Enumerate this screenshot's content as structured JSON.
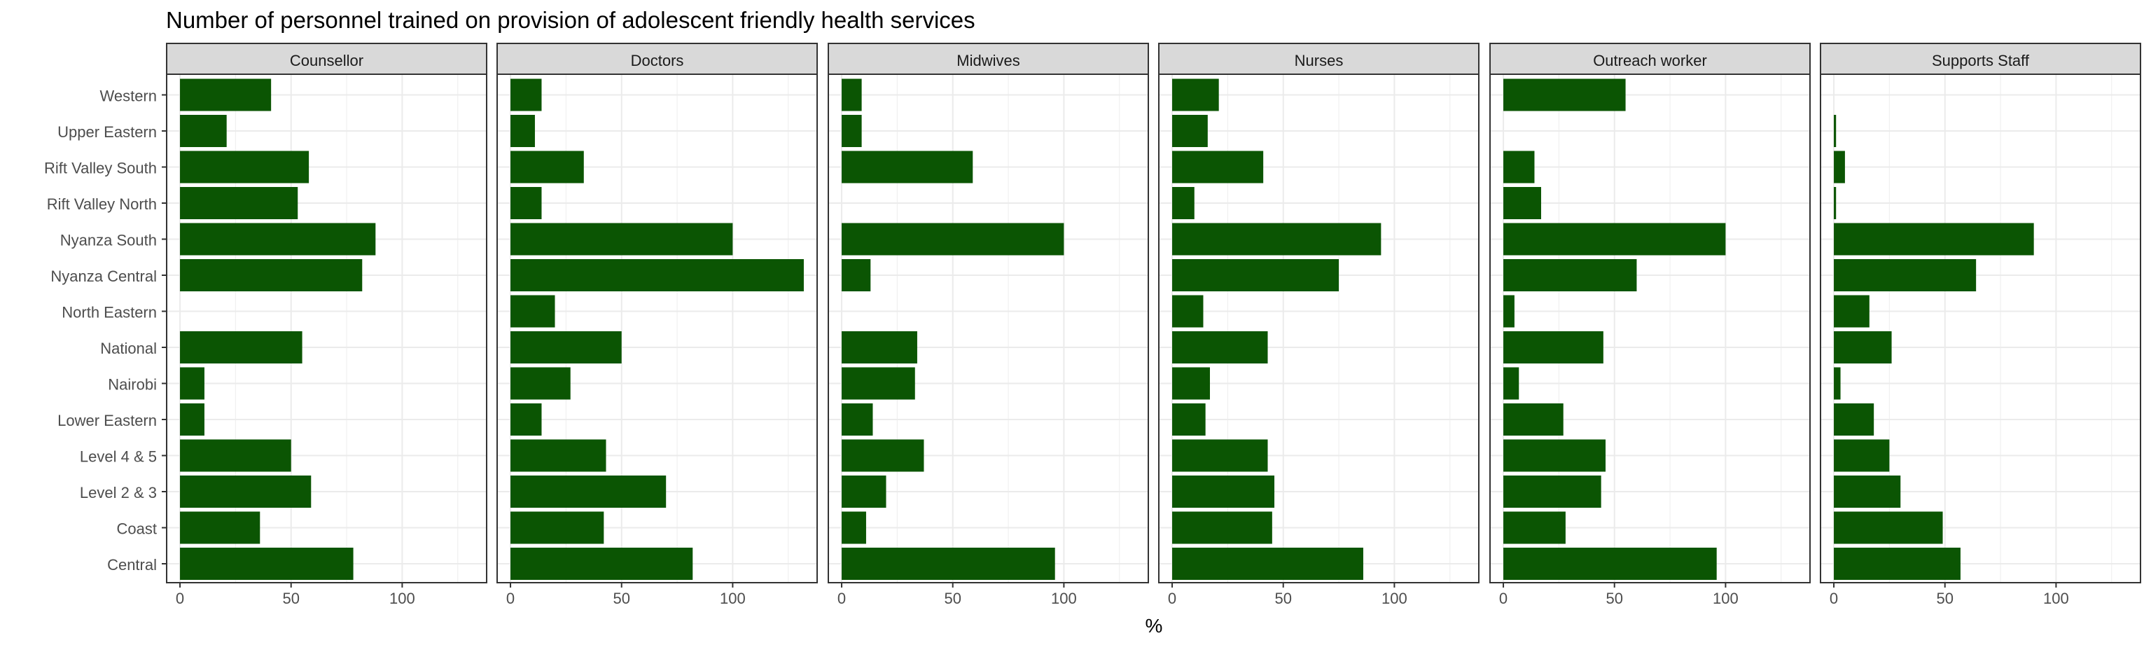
{
  "chart_data": {
    "type": "bar",
    "orientation": "horizontal",
    "title": "Number of personnel trained on provision of adolescent friendly health services",
    "xlabel": "%",
    "ylabel": "",
    "xlim": [
      -6,
      138
    ],
    "xticks": [
      0,
      50,
      100
    ],
    "grid": true,
    "legend": "none",
    "bar_color": "#0b5503",
    "panel_strip_color": "#d9d9d9",
    "categories": [
      "Central",
      "Coast",
      "Level 2 & 3",
      "Level 4 & 5",
      "Lower Eastern",
      "Nairobi",
      "National",
      "North Eastern",
      "Nyanza Central",
      "Nyanza South",
      "Rift Valley North",
      "Rift Valley South",
      "Upper Eastern",
      "Western"
    ],
    "facets": [
      {
        "name": "Counsellor",
        "values": [
          78,
          36,
          59,
          50,
          11,
          11,
          55,
          0,
          82,
          88,
          53,
          58,
          21,
          41
        ]
      },
      {
        "name": "Doctors",
        "values": [
          82,
          42,
          70,
          43,
          14,
          27,
          50,
          20,
          132,
          100,
          14,
          33,
          11,
          14
        ]
      },
      {
        "name": "Midwives",
        "values": [
          96,
          11,
          20,
          37,
          14,
          33,
          34,
          0,
          13,
          100,
          0,
          59,
          9,
          9
        ]
      },
      {
        "name": "Nurses",
        "values": [
          86,
          45,
          46,
          43,
          15,
          17,
          43,
          14,
          75,
          94,
          10,
          41,
          16,
          21
        ]
      },
      {
        "name": "Outreach worker",
        "values": [
          96,
          28,
          44,
          46,
          27,
          7,
          45,
          5,
          60,
          100,
          17,
          14,
          0,
          55
        ]
      },
      {
        "name": "Supports Staff",
        "values": [
          57,
          49,
          30,
          25,
          18,
          3,
          26,
          16,
          64,
          90,
          1,
          5,
          1,
          0
        ]
      }
    ]
  }
}
